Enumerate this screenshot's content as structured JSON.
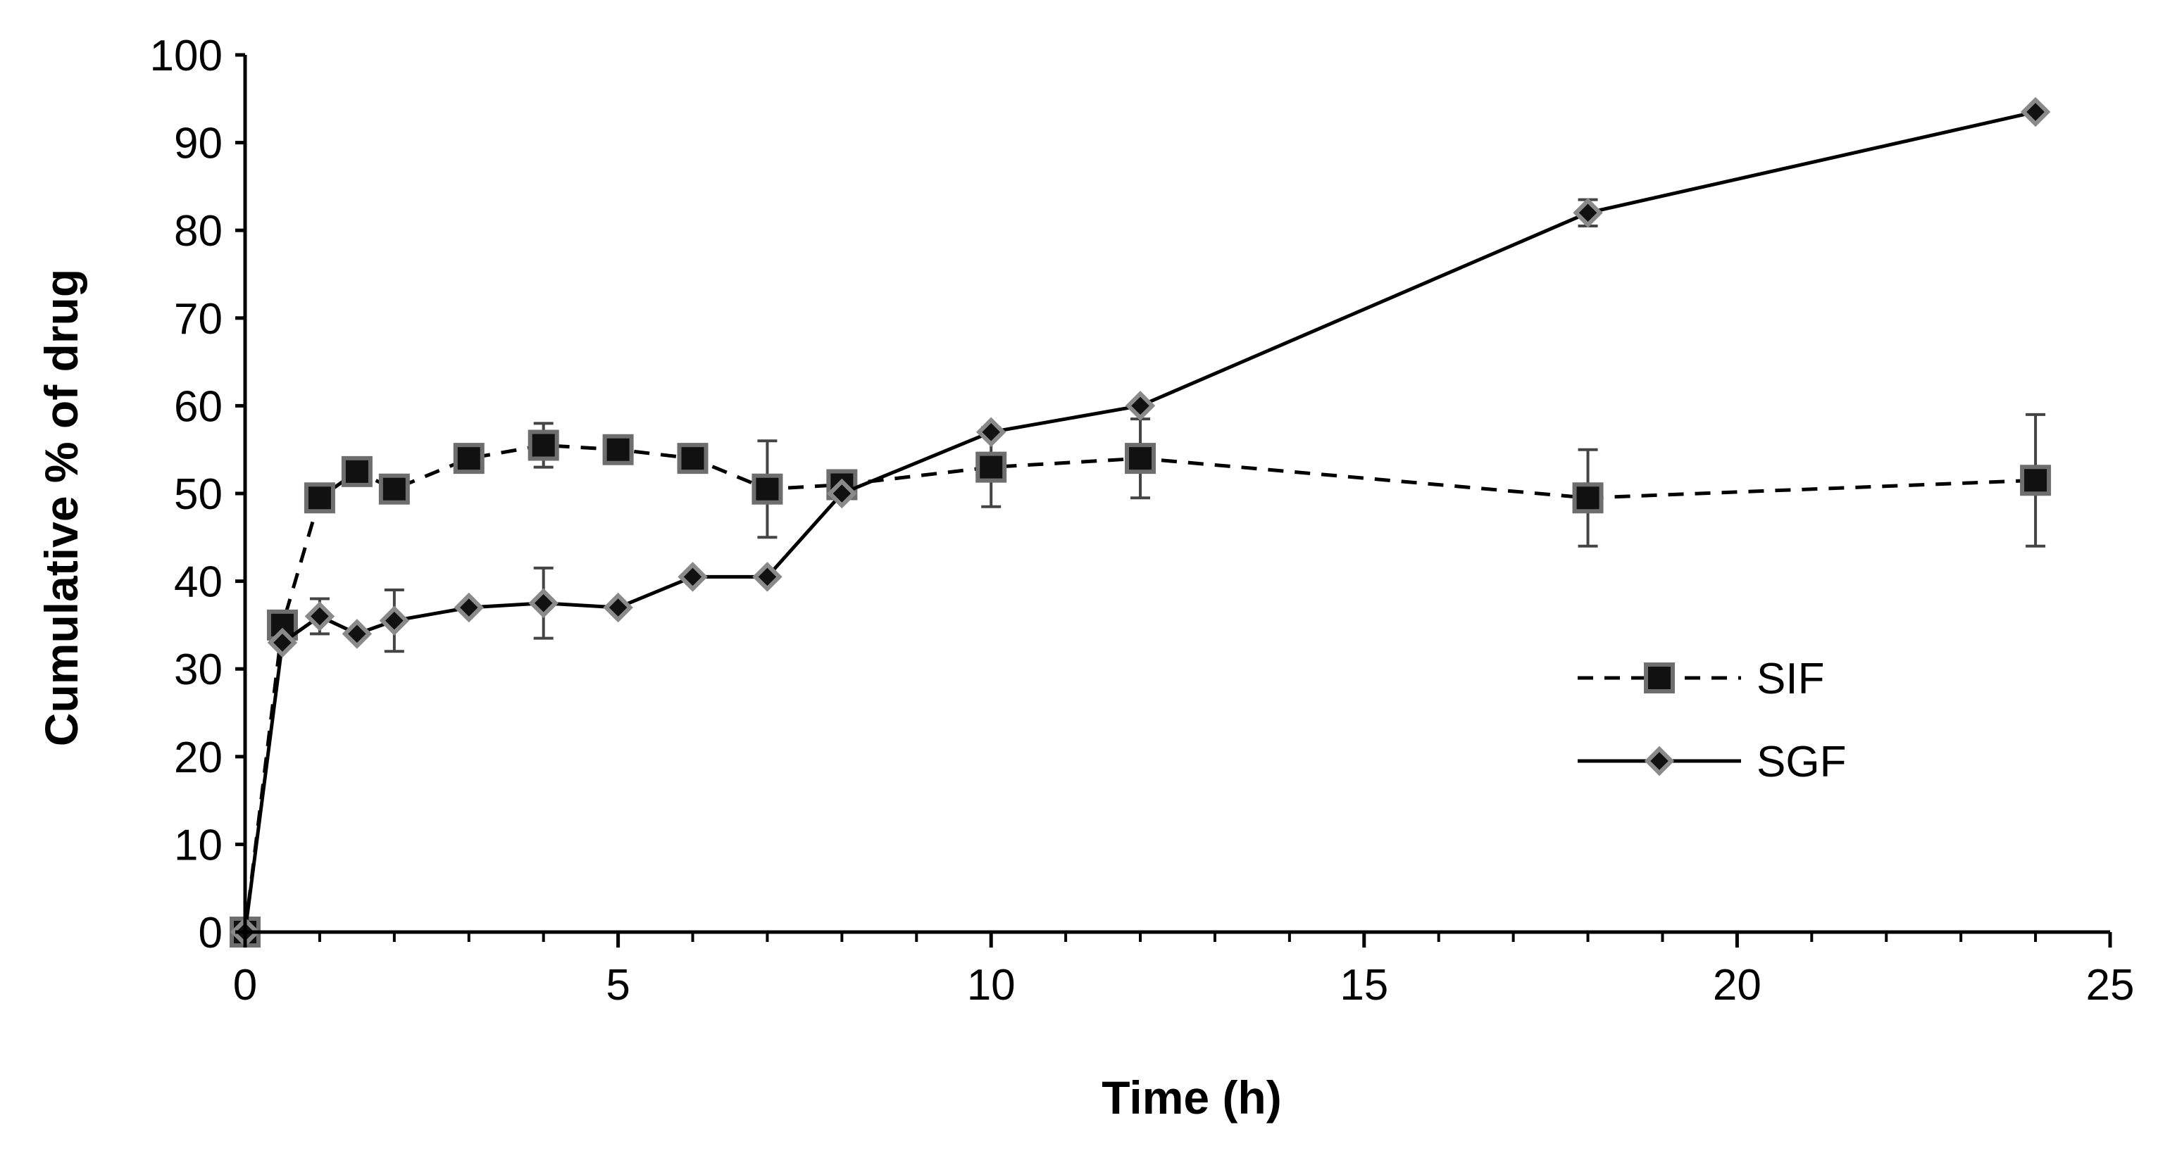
{
  "chart_data": {
    "type": "line",
    "title": "",
    "xlabel": "Time (h)",
    "ylabel": "Cumulative % of drug",
    "xlim": [
      0,
      25
    ],
    "ylim": [
      0,
      100
    ],
    "x_ticks": [
      0,
      5,
      10,
      15,
      20,
      25
    ],
    "x_tick_labels": [
      "0",
      "5",
      "10",
      "15",
      "20",
      "25"
    ],
    "x_minor_step": 1,
    "y_ticks": [
      0,
      10,
      20,
      30,
      40,
      50,
      60,
      70,
      80,
      90,
      100
    ],
    "y_tick_labels": [
      "0",
      "10",
      "20",
      "30",
      "40",
      "50",
      "60",
      "70",
      "80",
      "90",
      "100"
    ],
    "grid": false,
    "legend_position": "center-right",
    "series": [
      {
        "name": "SIF",
        "line_style": "dashed",
        "marker": "square",
        "color": "#000000",
        "marker_fill": "#111111",
        "marker_edge": "#6e6e6e",
        "x": [
          0,
          0.5,
          1,
          1.5,
          2,
          3,
          4,
          5,
          6,
          7,
          8,
          10,
          12,
          18,
          24
        ],
        "y": [
          0,
          35,
          49.5,
          52.5,
          50.5,
          54,
          55.5,
          55,
          54,
          50.5,
          51,
          53,
          54,
          49.5,
          51.5
        ],
        "err": [
          0,
          0,
          0,
          0,
          0,
          0,
          2.5,
          1,
          0,
          5.5,
          0,
          4.5,
          4.5,
          5.5,
          7.5
        ]
      },
      {
        "name": "SGF",
        "line_style": "solid",
        "marker": "diamond",
        "color": "#000000",
        "marker_fill": "#111111",
        "marker_edge": "#8a8a8a",
        "x": [
          0,
          0.5,
          1,
          1.5,
          2,
          3,
          4,
          5,
          6,
          7,
          8,
          10,
          12,
          18,
          24
        ],
        "y": [
          0,
          33,
          36,
          34,
          35.5,
          37,
          37.5,
          37,
          40.5,
          40.5,
          50,
          57,
          60,
          82,
          93.5
        ],
        "err": [
          0,
          0,
          2,
          0,
          3.5,
          0,
          4,
          0,
          0,
          0,
          0,
          0,
          0,
          1.5,
          0
        ]
      }
    ]
  }
}
